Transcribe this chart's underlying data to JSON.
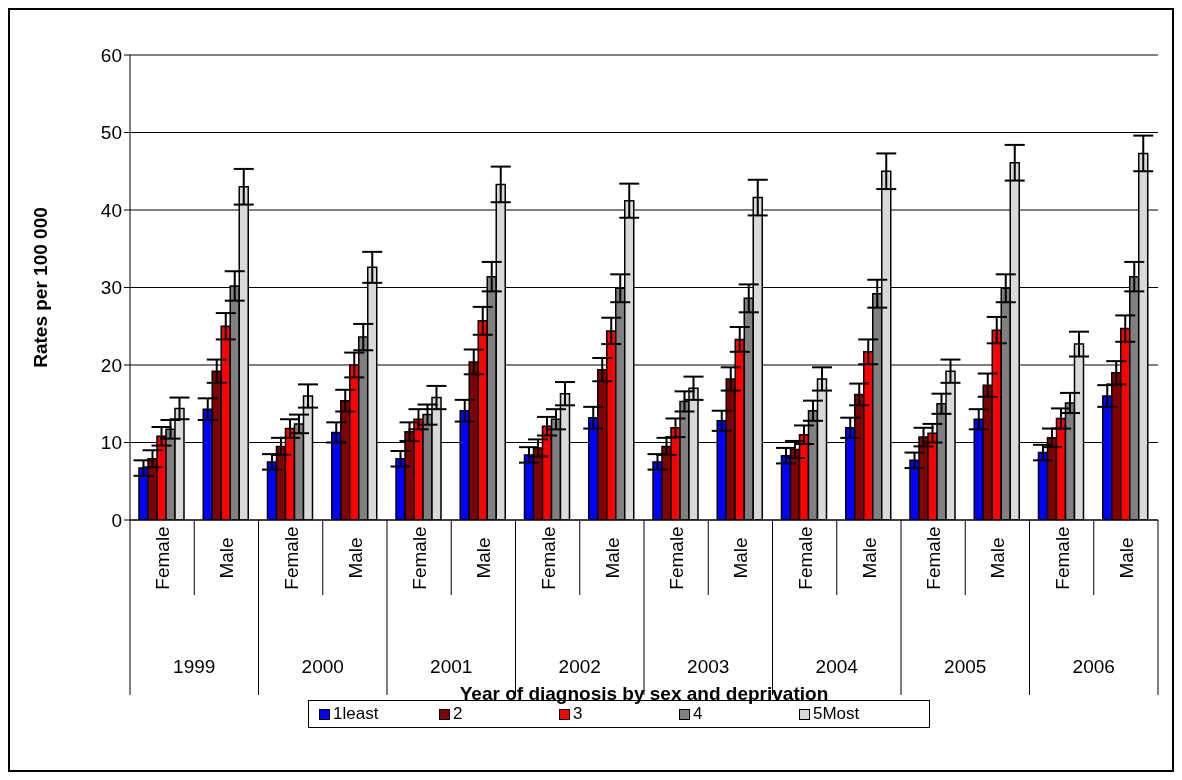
{
  "chart_data": {
    "type": "bar",
    "xlabel": "Year of diagnosis by sex and deprivation",
    "ylabel": "Rates per 100 000",
    "categories": [
      "Female",
      "Male",
      "Female",
      "Male",
      "Female",
      "Male",
      "Female",
      "Male",
      "Female",
      "Male",
      "Female",
      "Male",
      "Female",
      "Male",
      "Female",
      "Male"
    ],
    "annotations": [
      "1999",
      "2000",
      "2001",
      "2002",
      "2003",
      "2004",
      "2005",
      "2006"
    ],
    "ylim": [
      0,
      60
    ],
    "yticks": [
      0,
      10,
      20,
      30,
      40,
      50,
      60
    ],
    "grid": "y",
    "legend": "bottom",
    "series": [
      {
        "name": "1least",
        "color": "#0000ff",
        "values": [
          6.7,
          14.3,
          7.5,
          11.3,
          7.9,
          14.1,
          8.4,
          13.2,
          7.5,
          12.8,
          8.3,
          11.9,
          7.7,
          13.0,
          8.7,
          16.0
        ],
        "errors": [
          1.0,
          1.4,
          1.0,
          1.3,
          1.0,
          1.4,
          1.0,
          1.4,
          1.0,
          1.3,
          1.0,
          1.3,
          1.0,
          1.3,
          1.0,
          1.4
        ]
      },
      {
        "name": "2",
        "color": "#800000",
        "values": [
          7.9,
          19.2,
          9.5,
          15.4,
          11.4,
          20.4,
          9.3,
          19.4,
          9.5,
          18.2,
          9.1,
          16.2,
          10.7,
          17.4,
          10.6,
          19.0
        ],
        "errors": [
          1.1,
          1.5,
          1.1,
          1.4,
          1.2,
          1.6,
          1.1,
          1.5,
          1.1,
          1.5,
          1.1,
          1.4,
          1.2,
          1.5,
          1.2,
          1.5
        ]
      },
      {
        "name": "3",
        "color": "#ff0000",
        "values": [
          10.8,
          25.0,
          11.8,
          20.0,
          13.0,
          25.7,
          12.1,
          24.4,
          11.9,
          23.3,
          11.0,
          21.7,
          11.2,
          24.5,
          13.1,
          24.7
        ],
        "errors": [
          1.2,
          1.7,
          1.2,
          1.6,
          1.3,
          1.8,
          1.2,
          1.7,
          1.2,
          1.6,
          1.2,
          1.6,
          1.2,
          1.7,
          1.3,
          1.7
        ]
      },
      {
        "name": "4",
        "color": "#808080",
        "values": [
          11.7,
          30.2,
          12.4,
          23.6,
          13.6,
          31.4,
          13.0,
          29.9,
          15.3,
          28.6,
          14.1,
          29.2,
          15.0,
          29.9,
          15.1,
          31.4
        ],
        "errors": [
          1.2,
          1.9,
          1.2,
          1.7,
          1.3,
          1.9,
          1.3,
          1.8,
          1.3,
          1.8,
          1.3,
          1.8,
          1.3,
          1.8,
          1.3,
          1.9
        ]
      },
      {
        "name": "5Most",
        "color": "#d9d9d9",
        "values": [
          14.4,
          43.0,
          16.0,
          32.6,
          15.8,
          43.3,
          16.3,
          41.2,
          17.0,
          41.6,
          18.2,
          45.0,
          19.2,
          46.1,
          22.7,
          47.3
        ],
        "errors": [
          1.4,
          2.3,
          1.5,
          2.0,
          1.5,
          2.3,
          1.5,
          2.2,
          1.5,
          2.3,
          1.5,
          2.3,
          1.5,
          2.3,
          1.6,
          2.3
        ]
      }
    ]
  }
}
